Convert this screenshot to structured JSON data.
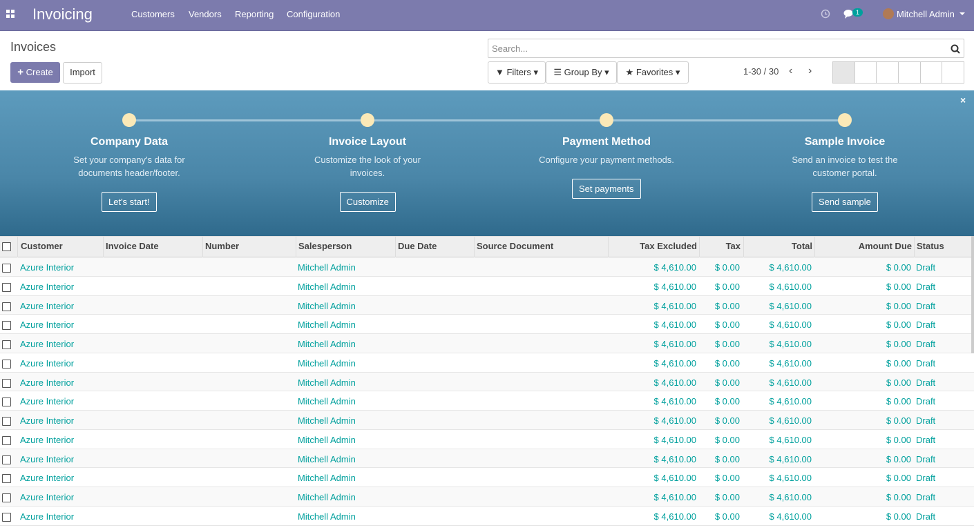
{
  "navbar": {
    "app": "Invoicing",
    "menu": [
      "Customers",
      "Vendors",
      "Reporting",
      "Configuration"
    ],
    "messages": "1",
    "user": "Mitchell Admin"
  },
  "control_panel": {
    "title": "Invoices",
    "create": "Create",
    "import": "Import",
    "search_placeholder": "Search...",
    "filters": "Filters",
    "group_by": "Group By",
    "favorites": "Favorites",
    "pager": "1-30 / 30"
  },
  "onboarding": {
    "steps": [
      {
        "title": "Company Data",
        "description": "Set your company's data for documents header/footer.",
        "button": "Let's start!"
      },
      {
        "title": "Invoice Layout",
        "description": "Customize the look of your invoices.",
        "button": "Customize"
      },
      {
        "title": "Payment Method",
        "description": "Configure your payment methods.",
        "button": "Set payments"
      },
      {
        "title": "Sample Invoice",
        "description": "Send an invoice to test the customer portal.",
        "button": "Send sample"
      }
    ]
  },
  "table": {
    "columns": [
      "Customer",
      "Invoice Date",
      "Number",
      "Salesperson",
      "Due Date",
      "Source Document",
      "Tax Excluded",
      "Tax",
      "Total",
      "Amount Due",
      "Status"
    ],
    "rows": [
      [
        "Azure Interior",
        null,
        null,
        "Mitchell Admin",
        null,
        null,
        "$ 4,610.00",
        "$ 0.00",
        "$ 4,610.00",
        "$ 0.00",
        "Draft"
      ],
      [
        "Azure Interior",
        null,
        null,
        "Mitchell Admin",
        null,
        null,
        "$ 4,610.00",
        "$ 0.00",
        "$ 4,610.00",
        "$ 0.00",
        "Draft"
      ],
      [
        "Azure Interior",
        null,
        null,
        "Mitchell Admin",
        null,
        null,
        "$ 4,610.00",
        "$ 0.00",
        "$ 4,610.00",
        "$ 0.00",
        "Draft"
      ],
      [
        "Azure Interior",
        null,
        null,
        "Mitchell Admin",
        null,
        null,
        "$ 4,610.00",
        "$ 0.00",
        "$ 4,610.00",
        "$ 0.00",
        "Draft"
      ],
      [
        "Azure Interior",
        null,
        null,
        "Mitchell Admin",
        null,
        null,
        "$ 4,610.00",
        "$ 0.00",
        "$ 4,610.00",
        "$ 0.00",
        "Draft"
      ],
      [
        "Azure Interior",
        null,
        null,
        "Mitchell Admin",
        null,
        null,
        "$ 4,610.00",
        "$ 0.00",
        "$ 4,610.00",
        "$ 0.00",
        "Draft"
      ],
      [
        "Azure Interior",
        null,
        null,
        "Mitchell Admin",
        null,
        null,
        "$ 4,610.00",
        "$ 0.00",
        "$ 4,610.00",
        "$ 0.00",
        "Draft"
      ],
      [
        "Azure Interior",
        null,
        null,
        "Mitchell Admin",
        null,
        null,
        "$ 4,610.00",
        "$ 0.00",
        "$ 4,610.00",
        "$ 0.00",
        "Draft"
      ],
      [
        "Azure Interior",
        null,
        null,
        "Mitchell Admin",
        null,
        null,
        "$ 4,610.00",
        "$ 0.00",
        "$ 4,610.00",
        "$ 0.00",
        "Draft"
      ],
      [
        "Azure Interior",
        null,
        null,
        "Mitchell Admin",
        null,
        null,
        "$ 4,610.00",
        "$ 0.00",
        "$ 4,610.00",
        "$ 0.00",
        "Draft"
      ],
      [
        "Azure Interior",
        null,
        null,
        "Mitchell Admin",
        null,
        null,
        "$ 4,610.00",
        "$ 0.00",
        "$ 4,610.00",
        "$ 0.00",
        "Draft"
      ],
      [
        "Azure Interior",
        null,
        null,
        "Mitchell Admin",
        null,
        null,
        "$ 4,610.00",
        "$ 0.00",
        "$ 4,610.00",
        "$ 0.00",
        "Draft"
      ],
      [
        "Azure Interior",
        null,
        null,
        "Mitchell Admin",
        null,
        null,
        "$ 4,610.00",
        "$ 0.00",
        "$ 4,610.00",
        "$ 0.00",
        "Draft"
      ],
      [
        "Azure Interior",
        null,
        null,
        "Mitchell Admin",
        null,
        null,
        "$ 4,610.00",
        "$ 0.00",
        "$ 4,610.00",
        "$ 0.00",
        "Draft"
      ]
    ]
  }
}
